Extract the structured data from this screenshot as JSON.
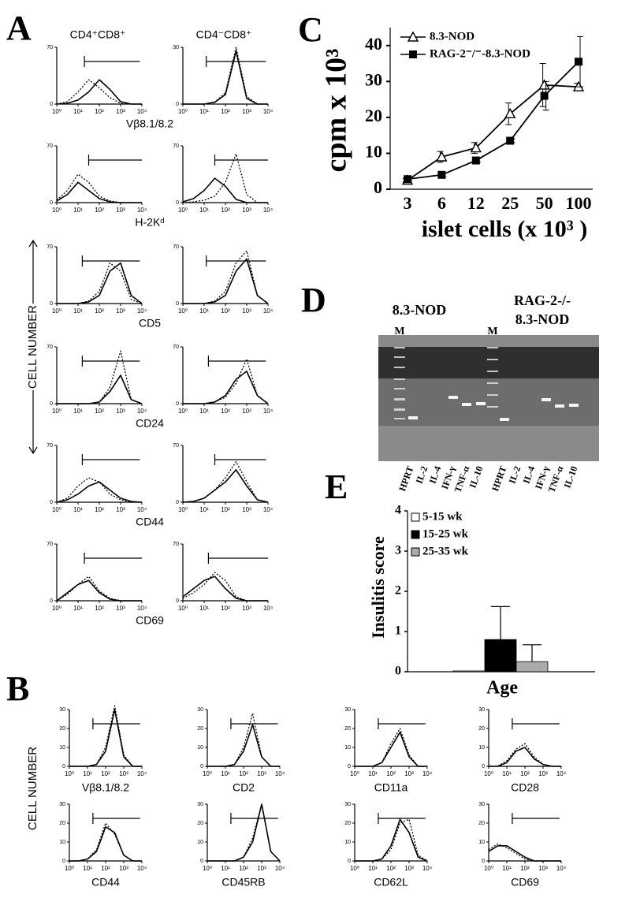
{
  "panel_a": {
    "letter": "A",
    "y_label": "CELL NUMBER",
    "columns": [
      "CD4⁺CD8⁺",
      "CD4⁻CD8⁺"
    ],
    "x": [
      0,
      0.5,
      1,
      1.5,
      2,
      2.5,
      3,
      3.5,
      4
    ],
    "xlim": [
      0,
      4
    ],
    "xticks": [
      {
        "value": 0,
        "label": "10⁰"
      },
      {
        "value": 1,
        "label": "10¹"
      },
      {
        "value": 2,
        "label": "10²"
      },
      {
        "value": 3,
        "label": "10³"
      },
      {
        "value": 4,
        "label": "10⁴"
      }
    ],
    "rows": [
      {
        "marker": "Vβ8.1/8.2",
        "plots": [
          {
            "ylim": [
              0,
              70
            ],
            "yticks": [
              0,
              70
            ],
            "gate": [
              1.3,
              3.9
            ],
            "solid": [
              0,
              1,
              5,
              15,
              30,
              18,
              3,
              0,
              0
            ],
            "dotted": [
              0,
              3,
              15,
              30,
              20,
              8,
              1,
              0,
              0
            ]
          },
          {
            "ylim": [
              0,
              30
            ],
            "yticks": [
              0,
              30
            ],
            "gate": [
              1.1,
              3.9
            ],
            "solid": [
              0,
              0,
              0,
              1,
              5,
              28,
              3,
              0,
              0
            ],
            "dotted": [
              0,
              0,
              0,
              1,
              6,
              30,
              4,
              0,
              0
            ]
          }
        ]
      },
      {
        "marker": "H-2Kᵈ",
        "plots": [
          {
            "ylim": [
              0,
              70
            ],
            "yticks": [
              0,
              70
            ],
            "gate": [
              1.5,
              4
            ],
            "solid": [
              2,
              10,
              25,
              15,
              5,
              1,
              0,
              0,
              0
            ],
            "dotted": [
              3,
              15,
              35,
              25,
              8,
              2,
              0,
              0,
              0
            ]
          },
          {
            "ylim": [
              0,
              70
            ],
            "yticks": [
              0,
              70
            ],
            "gate": [
              1.5,
              4
            ],
            "solid": [
              1,
              5,
              15,
              30,
              20,
              4,
              0,
              0,
              0
            ],
            "dotted": [
              0,
              1,
              3,
              8,
              25,
              60,
              10,
              0,
              0
            ]
          }
        ]
      },
      {
        "marker": "CD5",
        "plots": [
          {
            "ylim": [
              0,
              70
            ],
            "yticks": [
              0,
              70
            ],
            "gate": [
              1.2,
              3.9
            ],
            "solid": [
              0,
              0,
              0,
              2,
              10,
              40,
              50,
              10,
              0
            ],
            "dotted": [
              0,
              0,
              0,
              3,
              15,
              50,
              40,
              5,
              0
            ]
          },
          {
            "ylim": [
              0,
              70
            ],
            "yticks": [
              0,
              70
            ],
            "gate": [
              1.1,
              3.9
            ],
            "solid": [
              0,
              0,
              0,
              2,
              10,
              40,
              55,
              10,
              0
            ],
            "dotted": [
              0,
              0,
              0,
              3,
              15,
              50,
              65,
              10,
              0
            ]
          }
        ]
      },
      {
        "marker": "CD24",
        "plots": [
          {
            "ylim": [
              0,
              70
            ],
            "yticks": [
              0,
              70
            ],
            "gate": [
              1.2,
              3.9
            ],
            "solid": [
              0,
              0,
              0,
              0,
              2,
              15,
              35,
              5,
              0
            ],
            "dotted": [
              0,
              0,
              0,
              0,
              2,
              20,
              65,
              5,
              0
            ]
          },
          {
            "ylim": [
              0,
              70
            ],
            "yticks": [
              0,
              70
            ],
            "gate": [
              1.2,
              3.9
            ],
            "solid": [
              0,
              0,
              0,
              2,
              10,
              30,
              40,
              10,
              0
            ],
            "dotted": [
              0,
              0,
              0,
              2,
              8,
              25,
              55,
              10,
              0
            ]
          }
        ]
      },
      {
        "marker": "CD44",
        "plots": [
          {
            "ylim": [
              0,
              70
            ],
            "yticks": [
              0,
              70
            ],
            "gate": [
              1.2,
              3.9
            ],
            "solid": [
              0,
              3,
              10,
              20,
              25,
              15,
              5,
              1,
              0
            ],
            "dotted": [
              0,
              5,
              20,
              30,
              25,
              10,
              3,
              0,
              0
            ]
          },
          {
            "ylim": [
              0,
              70
            ],
            "yticks": [
              0,
              70
            ],
            "gate": [
              1.5,
              3.9
            ],
            "solid": [
              0,
              1,
              5,
              15,
              25,
              40,
              20,
              3,
              0
            ],
            "dotted": [
              0,
              1,
              5,
              15,
              30,
              50,
              25,
              3,
              0
            ]
          }
        ]
      },
      {
        "marker": "CD69",
        "plots": [
          {
            "ylim": [
              0,
              70
            ],
            "yticks": [
              0,
              70
            ],
            "gate": [
              1.3,
              4
            ],
            "solid": [
              0,
              10,
              20,
              25,
              10,
              2,
              0,
              0,
              0
            ],
            "dotted": [
              0,
              8,
              20,
              30,
              12,
              3,
              0,
              0,
              0
            ]
          },
          {
            "ylim": [
              0,
              70
            ],
            "yticks": [
              0,
              70
            ],
            "gate": [
              1.2,
              4
            ],
            "solid": [
              5,
              15,
              25,
              30,
              15,
              3,
              0,
              0,
              0
            ],
            "dotted": [
              3,
              10,
              20,
              35,
              25,
              5,
              0,
              0,
              0
            ]
          }
        ]
      }
    ]
  },
  "panel_b": {
    "letter": "B",
    "y_label": "CELL NUMBER",
    "ylim": [
      0,
      30
    ],
    "yticks": [
      0,
      10,
      20,
      30
    ],
    "x": [
      0,
      0.5,
      1,
      1.5,
      2,
      2.5,
      3,
      3.5,
      4
    ],
    "xlim": [
      0,
      4
    ],
    "xticks": [
      {
        "value": 0,
        "label": "10⁰"
      },
      {
        "value": 1,
        "label": "10¹"
      },
      {
        "value": 2,
        "label": "10²"
      },
      {
        "value": 3,
        "label": "10³"
      },
      {
        "value": 4,
        "label": "10⁴"
      }
    ],
    "plots": [
      {
        "marker": "Vβ8.1/8.2",
        "gate": [
          1.3,
          3.9
        ],
        "solid": [
          0,
          0,
          0,
          1,
          8,
          30,
          5,
          0,
          0
        ],
        "dotted": [
          0,
          0,
          0,
          1,
          10,
          32,
          6,
          0,
          0
        ]
      },
      {
        "marker": "CD2",
        "gate": [
          1.3,
          3.9
        ],
        "solid": [
          0,
          0,
          0,
          1,
          8,
          22,
          5,
          0,
          0
        ],
        "dotted": [
          0,
          0,
          0,
          1,
          10,
          28,
          5,
          0,
          0
        ]
      },
      {
        "marker": "CD11a",
        "gate": [
          1.3,
          3.9
        ],
        "solid": [
          0,
          0,
          0,
          2,
          10,
          18,
          5,
          0,
          0
        ],
        "dotted": [
          0,
          0,
          0,
          2,
          12,
          20,
          6,
          0,
          0
        ]
      },
      {
        "marker": "CD28",
        "gate": [
          1.3,
          3.9
        ],
        "solid": [
          0,
          0,
          2,
          8,
          10,
          4,
          1,
          0,
          0
        ],
        "dotted": [
          0,
          0,
          3,
          9,
          12,
          5,
          1,
          0,
          0
        ]
      },
      {
        "marker": "CD44",
        "gate": [
          1.3,
          3.9
        ],
        "solid": [
          0,
          0,
          1,
          5,
          18,
          15,
          3,
          0,
          0
        ],
        "dotted": [
          0,
          0,
          1,
          6,
          20,
          14,
          3,
          0,
          0
        ]
      },
      {
        "marker": "CD45RB",
        "gate": [
          1.3,
          3.9
        ],
        "solid": [
          0,
          0,
          0,
          0,
          2,
          10,
          30,
          5,
          0
        ],
        "dotted": [
          0,
          0,
          0,
          0,
          2,
          12,
          30,
          5,
          0
        ]
      },
      {
        "marker": "CD62L",
        "gate": [
          1.3,
          3.9
        ],
        "solid": [
          0,
          0,
          0,
          1,
          8,
          22,
          15,
          2,
          0
        ],
        "dotted": [
          0,
          0,
          0,
          1,
          6,
          20,
          22,
          3,
          0
        ]
      },
      {
        "marker": "CD69",
        "gate": [
          1.3,
          3.9
        ],
        "solid": [
          5,
          8,
          8,
          5,
          2,
          0,
          0,
          0,
          0
        ],
        "dotted": [
          6,
          9,
          7,
          4,
          1,
          0,
          0,
          0,
          0
        ]
      }
    ]
  },
  "panel_d": {
    "letter": "D",
    "groups": [
      [
        "8.3-NOD"
      ],
      [
        "RAG-2-/-",
        "8.3-NOD"
      ]
    ],
    "marker_lane": "M",
    "lanes": [
      "HPRT",
      "IL-2",
      "IL-4",
      "IFN-γ",
      "TNF-α",
      "IL-10"
    ]
  },
  "chart_data": [
    {
      "letter": "C",
      "type": "line",
      "y_label": "cpm x 10³",
      "x_label": "islet cells (x 10³ )",
      "categories": [
        3,
        6,
        12,
        25,
        50,
        100
      ],
      "ylim": [
        0,
        45
      ],
      "yticks": [
        0,
        10,
        20,
        30,
        40
      ],
      "series": [
        {
          "name": "8.3-NOD",
          "marker": "triangle-open",
          "color": "#000000",
          "values": [
            2.5,
            9,
            11.5,
            21,
            29,
            28.5
          ],
          "errors": [
            0.5,
            1.5,
            1.5,
            3,
            6,
            1
          ]
        },
        {
          "name": "RAG-2⁻/⁻-8.3-NOD",
          "marker": "square",
          "color": "#000000",
          "values": [
            2.8,
            4,
            8,
            13.5,
            26,
            35.5
          ],
          "errors": [
            0.5,
            0.5,
            0.5,
            0.5,
            4,
            7
          ]
        }
      ]
    },
    {
      "letter": "E",
      "type": "bar",
      "y_label": "Insulitis score",
      "x_label": "Age",
      "ylim": [
        0,
        4
      ],
      "yticks": [
        0,
        1,
        2,
        3,
        4
      ],
      "series": [
        {
          "name": "5-15 wk",
          "color": "#ffffff",
          "value": 0.02,
          "error": 0
        },
        {
          "name": "15-25 wk",
          "color": "#000000",
          "value": 0.8,
          "error": 0.82
        },
        {
          "name": "25-35 wk",
          "color": "#aaaaaa",
          "value": 0.25,
          "error": 0.42
        }
      ]
    }
  ]
}
